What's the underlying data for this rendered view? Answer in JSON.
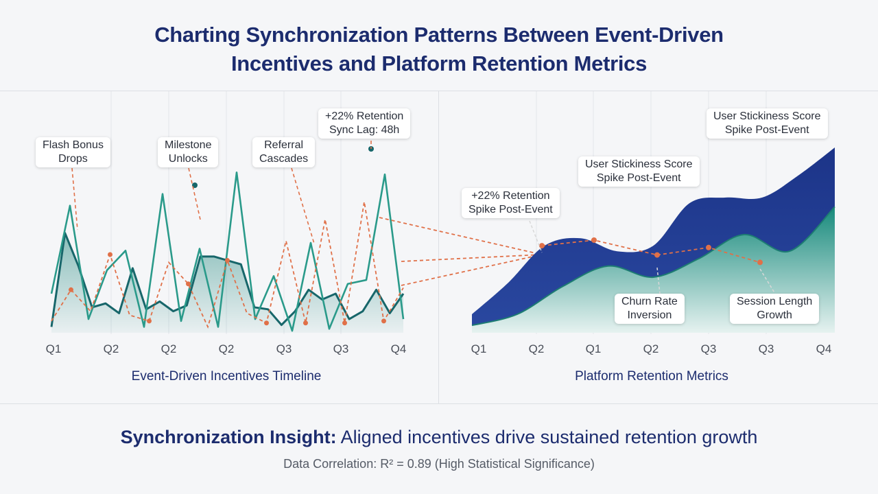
{
  "title": {
    "line1": "Charting Synchronization Patterns Between Event-Driven",
    "line2": "Incentives and Platform Retention Metrics"
  },
  "colors": {
    "navy": "#1f3a8a",
    "teal": "#1a8a7e",
    "dark_teal": "#17666a",
    "orange": "#e07048",
    "title": "#1c2c6e"
  },
  "chart_data": [
    {
      "type": "line",
      "title": "Event-Driven Incentives Timeline",
      "x_ticks": [
        "Q1",
        "Q2",
        "Q2",
        "Q2",
        "Q3",
        "Q3",
        "Q4"
      ],
      "ylim": [
        0,
        100
      ],
      "series": [
        {
          "style": "teal-line",
          "values": [
            20,
            65,
            7,
            32,
            42,
            3,
            71,
            6,
            43,
            3,
            82,
            7,
            29,
            1,
            46,
            2,
            25,
            27,
            81,
            7
          ]
        },
        {
          "style": "dark-teal-area",
          "values": [
            3,
            51,
            34,
            13,
            15,
            10,
            33,
            12,
            16,
            11,
            14,
            39,
            39,
            37,
            35,
            13,
            12,
            4,
            11,
            22,
            17,
            20,
            7,
            11,
            22,
            10,
            20
          ]
        },
        {
          "style": "orange-dashed",
          "values": [
            6,
            22,
            11,
            40,
            9,
            6,
            36,
            25,
            3,
            37,
            10,
            5,
            47,
            5,
            58,
            5,
            67,
            6,
            23
          ]
        }
      ],
      "annotations": [
        {
          "lines": [
            "Flash Bonus",
            "Drops"
          ]
        },
        {
          "lines": [
            "Milestone",
            "Unlocks"
          ]
        },
        {
          "lines": [
            "Referral",
            "Cascades"
          ]
        },
        {
          "lines": [
            "+22% Retention",
            "Sync Lag: 48h"
          ]
        }
      ]
    },
    {
      "type": "area",
      "title": "Platform Retention Metrics",
      "x_ticks": [
        "Q1",
        "Q2",
        "Q1",
        "Q2",
        "Q3",
        "Q3",
        "Q4"
      ],
      "ylim": [
        0,
        100
      ],
      "series": [
        {
          "style": "navy-area",
          "values": [
            10,
            27,
            47,
            51,
            44,
            47,
            70,
            73,
            73,
            85,
            100
          ]
        },
        {
          "style": "teal-area",
          "values": [
            4,
            10,
            25,
            36,
            30,
            40,
            53,
            44,
            68
          ]
        },
        {
          "style": "orange-dashed",
          "values": [
            47,
            50,
            42,
            46,
            38
          ]
        }
      ],
      "annotations": [
        {
          "lines": [
            "+22% Retention",
            "Spike Post-Event"
          ]
        },
        {
          "lines": [
            "User Stickiness Score",
            "Spike Post-Event"
          ]
        },
        {
          "lines": [
            "User Stickiness Score",
            "Spike Post-Event"
          ]
        },
        {
          "lines": [
            "Churn Rate",
            "Inversion"
          ]
        },
        {
          "lines": [
            "Session Length",
            "Growth"
          ]
        }
      ]
    }
  ],
  "insight": {
    "bold": "Synchronization Insight:",
    "rest": " Aligned incentives drive sustained retention growth"
  },
  "correlation": "Data Correlation: R² = 0.89 (High Statistical Significance)"
}
